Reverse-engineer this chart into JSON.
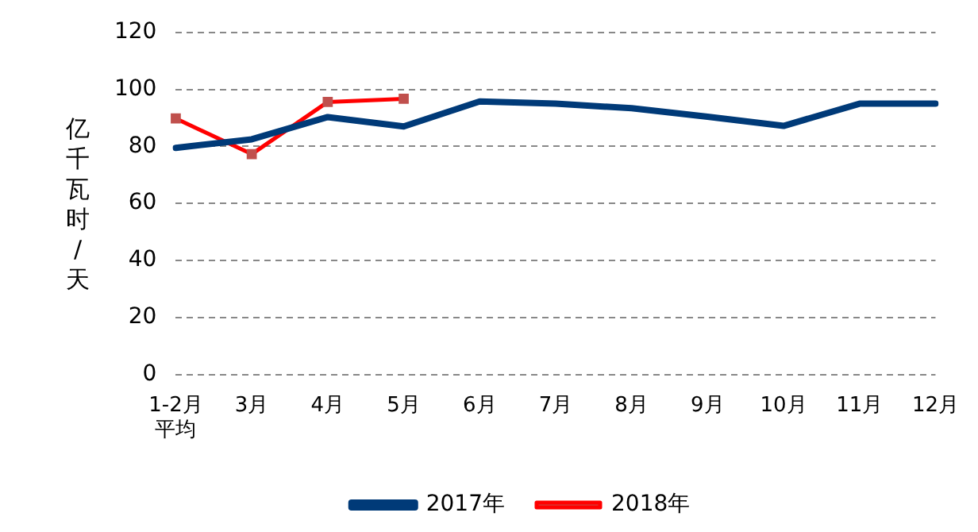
{
  "chart_data": {
    "type": "line",
    "ylabel": "亿千瓦时/天",
    "categories": [
      "1-2月平均",
      "3月",
      "4月",
      "5月",
      "6月",
      "7月",
      "8月",
      "9月",
      "10月",
      "11月",
      "12月"
    ],
    "series": [
      {
        "name": "2017年",
        "color": "#003a78",
        "values": [
          79.5,
          82.5,
          90.3,
          87,
          95.8,
          95,
          93.4,
          90.4,
          87.2,
          95,
          95
        ],
        "marker": "none"
      },
      {
        "name": "2018年",
        "color": "#ff0000",
        "values": [
          89.8,
          77.3,
          95.6,
          96.7,
          null,
          null,
          null,
          null,
          null,
          null,
          null
        ],
        "marker": "square"
      }
    ],
    "ylim": [
      0,
      120
    ],
    "yticks": [
      0,
      20,
      40,
      60,
      80,
      100,
      120
    ],
    "grid": "y",
    "legend": "bottom",
    "line_style": "solid"
  }
}
